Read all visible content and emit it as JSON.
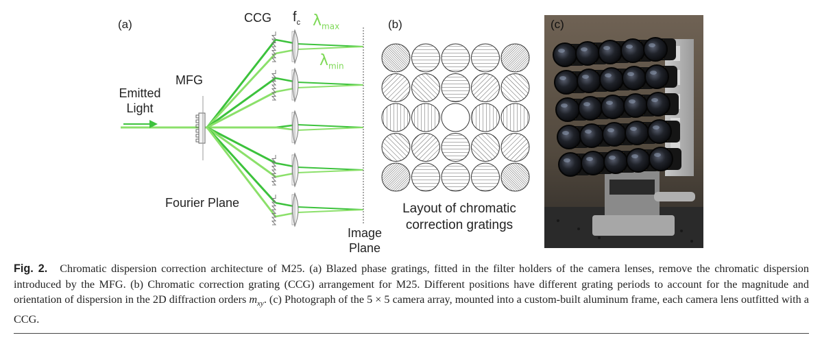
{
  "panel_a": {
    "label": "(a)",
    "emitted_light": [
      "Emitted",
      "Light"
    ],
    "mfg": "MFG",
    "ccg": "CCG",
    "fc": "f",
    "fc_sub": "c",
    "lambda_max": "λ",
    "lambda_max_sub": "max",
    "lambda_min": "λ",
    "lambda_min_sub": "min",
    "fourier_plane": "Fourier Plane",
    "image_plane": [
      "Image",
      "Plane"
    ]
  },
  "panel_b": {
    "label": "(b)",
    "caption_lines": [
      "Layout of chromatic",
      "correction gratings"
    ],
    "grid": [
      [
        "dense-diag-a",
        "horizontal",
        "horizontal",
        "horizontal",
        "dense-diag-b"
      ],
      [
        "diag-b",
        "diag-a",
        "horizontal",
        "diag-b",
        "diag-a"
      ],
      [
        "vertical",
        "vertical",
        "empty",
        "vertical",
        "vertical"
      ],
      [
        "diag-a",
        "diag-b",
        "horizontal",
        "diag-a",
        "diag-b"
      ],
      [
        "dense-diag-b",
        "horizontal",
        "horizontal",
        "horizontal",
        "dense-diag-a"
      ]
    ]
  },
  "panel_c": {
    "label": "(c)"
  },
  "caption": {
    "fig_label": "Fig. 2.",
    "text_1": "Chromatic dispersion correction architecture of M25. (a) Blazed phase gratings, fitted in the filter holders of the camera lenses, remove the chromatic dispersion introduced by the MFG. (b) Chromatic correction grating (CCG) arrangement for M25. Different positions have different grating periods to account for the magnitude and orientation of dispersion in the 2D diffraction orders ",
    "math": "m",
    "math_sub": "xy",
    "text_2": ". (c) Photograph of the 5 × 5 camera array, mounted into a custom-built aluminum frame, each camera lens outfitted with a CCG."
  },
  "colors": {
    "beam_dark": "#3cc23c",
    "beam_light": "#8be06a",
    "gray": "#555555"
  }
}
